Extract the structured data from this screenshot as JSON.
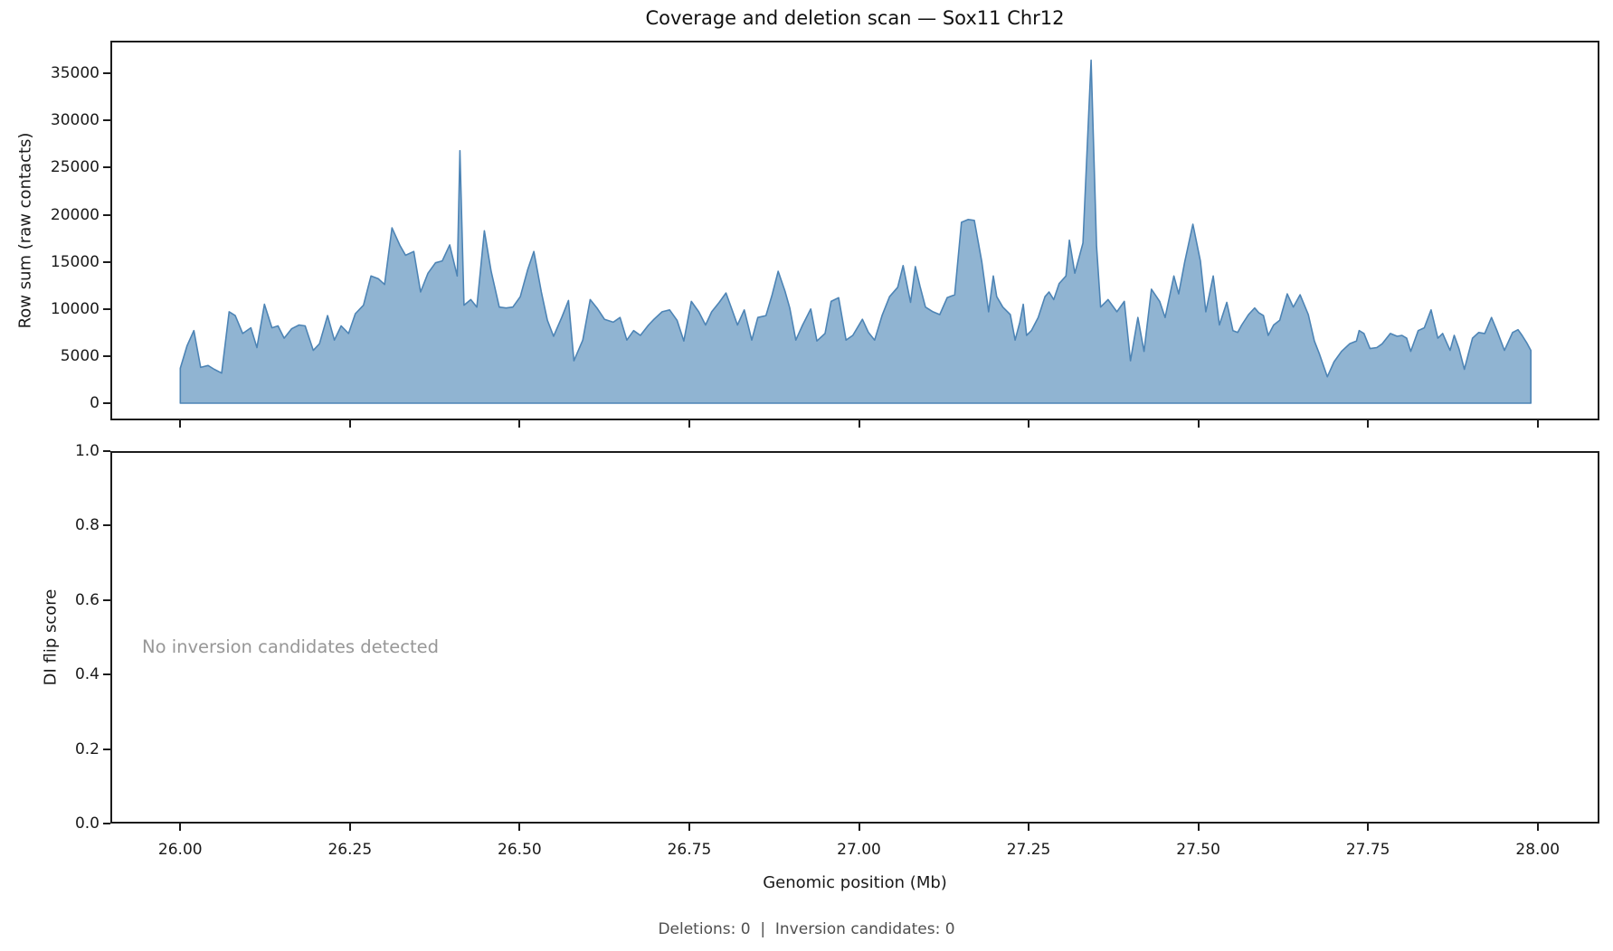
{
  "figure": {
    "title": "Coverage and deletion scan — Sox11 Chr12",
    "footer": "Deletions: 0  |  Inversion candidates: 0",
    "background": "#ffffff"
  },
  "chart_data": [
    {
      "type": "area",
      "title": "Coverage and deletion scan — Sox11 Chr12",
      "xlabel": "Genomic position (Mb)",
      "ylabel": "Row sum (raw contacts)",
      "xlim": [
        25.897,
        28.091
      ],
      "ylim": [
        -1822,
        38472
      ],
      "grid": false,
      "legend": "none",
      "fill_color": "rgba(70,130,180,0.6)",
      "line_color": "#4d84b5",
      "xticks": {
        "values": [
          26.0,
          26.25,
          26.5,
          26.75,
          27.0,
          27.25,
          27.5,
          27.75,
          28.0
        ],
        "labels": [
          "26.00",
          "26.25",
          "26.50",
          "26.75",
          "27.00",
          "27.25",
          "27.50",
          "27.75",
          "28.00"
        ]
      },
      "yticks": {
        "values": [
          0,
          5000,
          10000,
          15000,
          20000,
          25000,
          30000,
          35000
        ],
        "labels": [
          "0",
          "5000",
          "10000",
          "15000",
          "20000",
          "25000",
          "30000",
          "35000"
        ]
      },
      "points": [
        [
          26.0,
          3700
        ],
        [
          26.01,
          6100
        ],
        [
          26.02,
          7700
        ],
        [
          26.03,
          3800
        ],
        [
          26.041,
          4000
        ],
        [
          26.05,
          3600
        ],
        [
          26.061,
          3200
        ],
        [
          26.072,
          9700
        ],
        [
          26.081,
          9300
        ],
        [
          26.092,
          7400
        ],
        [
          26.104,
          8000
        ],
        [
          26.113,
          5900
        ],
        [
          26.124,
          10500
        ],
        [
          26.135,
          8000
        ],
        [
          26.144,
          8200
        ],
        [
          26.153,
          6900
        ],
        [
          26.164,
          7900
        ],
        [
          26.175,
          8300
        ],
        [
          26.184,
          8200
        ],
        [
          26.196,
          5600
        ],
        [
          26.205,
          6300
        ],
        [
          26.217,
          9300
        ],
        [
          26.227,
          6700
        ],
        [
          26.237,
          8200
        ],
        [
          26.248,
          7400
        ],
        [
          26.258,
          9500
        ],
        [
          26.27,
          10400
        ],
        [
          26.281,
          13500
        ],
        [
          26.292,
          13200
        ],
        [
          26.301,
          12600
        ],
        [
          26.312,
          18600
        ],
        [
          26.324,
          16700
        ],
        [
          26.332,
          15700
        ],
        [
          26.344,
          16100
        ],
        [
          26.354,
          11800
        ],
        [
          26.365,
          13800
        ],
        [
          26.376,
          14900
        ],
        [
          26.386,
          15100
        ],
        [
          26.397,
          16800
        ],
        [
          26.408,
          13500
        ],
        [
          26.412,
          26800
        ],
        [
          26.418,
          10400
        ],
        [
          26.428,
          11000
        ],
        [
          26.437,
          10200
        ],
        [
          26.448,
          18300
        ],
        [
          26.458,
          14000
        ],
        [
          26.47,
          10200
        ],
        [
          26.48,
          10100
        ],
        [
          26.49,
          10200
        ],
        [
          26.501,
          11300
        ],
        [
          26.512,
          14200
        ],
        [
          26.521,
          16100
        ],
        [
          26.532,
          11800
        ],
        [
          26.541,
          8800
        ],
        [
          26.55,
          7100
        ],
        [
          26.562,
          9100
        ],
        [
          26.572,
          10900
        ],
        [
          26.58,
          4500
        ],
        [
          26.593,
          6700
        ],
        [
          26.604,
          11000
        ],
        [
          26.614,
          10100
        ],
        [
          26.625,
          8900
        ],
        [
          26.638,
          8600
        ],
        [
          26.648,
          9100
        ],
        [
          26.658,
          6700
        ],
        [
          26.668,
          7700
        ],
        [
          26.678,
          7200
        ],
        [
          26.69,
          8300
        ],
        [
          26.698,
          8900
        ],
        [
          26.71,
          9700
        ],
        [
          26.721,
          9900
        ],
        [
          26.732,
          8800
        ],
        [
          26.742,
          6600
        ],
        [
          26.753,
          10800
        ],
        [
          26.764,
          9700
        ],
        [
          26.774,
          8300
        ],
        [
          26.783,
          9700
        ],
        [
          26.794,
          10700
        ],
        [
          26.804,
          11700
        ],
        [
          26.814,
          9700
        ],
        [
          26.821,
          8300
        ],
        [
          26.831,
          9900
        ],
        [
          26.842,
          6700
        ],
        [
          26.851,
          9100
        ],
        [
          26.863,
          9300
        ],
        [
          26.872,
          11500
        ],
        [
          26.881,
          14000
        ],
        [
          26.891,
          11900
        ],
        [
          26.898,
          10100
        ],
        [
          26.907,
          6700
        ],
        [
          26.917,
          8300
        ],
        [
          26.929,
          10000
        ],
        [
          26.938,
          6600
        ],
        [
          26.95,
          7400
        ],
        [
          26.959,
          10800
        ],
        [
          26.97,
          11200
        ],
        [
          26.981,
          6700
        ],
        [
          26.991,
          7200
        ],
        [
          27.005,
          8900
        ],
        [
          27.014,
          7500
        ],
        [
          27.023,
          6700
        ],
        [
          27.034,
          9300
        ],
        [
          27.045,
          11300
        ],
        [
          27.057,
          12300
        ],
        [
          27.065,
          14600
        ],
        [
          27.076,
          10700
        ],
        [
          27.083,
          14500
        ],
        [
          27.09,
          12400
        ],
        [
          27.098,
          10200
        ],
        [
          27.109,
          9700
        ],
        [
          27.119,
          9400
        ],
        [
          27.13,
          11200
        ],
        [
          27.141,
          11500
        ],
        [
          27.151,
          19200
        ],
        [
          27.161,
          19500
        ],
        [
          27.17,
          19400
        ],
        [
          27.181,
          15000
        ],
        [
          27.191,
          9700
        ],
        [
          27.198,
          13500
        ],
        [
          27.203,
          11300
        ],
        [
          27.212,
          10200
        ],
        [
          27.223,
          9400
        ],
        [
          27.23,
          6700
        ],
        [
          27.237,
          8600
        ],
        [
          27.242,
          10500
        ],
        [
          27.247,
          7200
        ],
        [
          27.254,
          7700
        ],
        [
          27.264,
          9100
        ],
        [
          27.274,
          11300
        ],
        [
          27.28,
          11800
        ],
        [
          27.287,
          11000
        ],
        [
          27.295,
          12700
        ],
        [
          27.305,
          13500
        ],
        [
          27.31,
          17300
        ],
        [
          27.318,
          13800
        ],
        [
          27.33,
          17000
        ],
        [
          27.342,
          36400
        ],
        [
          27.35,
          16700
        ],
        [
          27.356,
          10200
        ],
        [
          27.367,
          11000
        ],
        [
          27.38,
          9700
        ],
        [
          27.391,
          10800
        ],
        [
          27.4,
          4500
        ],
        [
          27.411,
          9100
        ],
        [
          27.42,
          5500
        ],
        [
          27.431,
          12100
        ],
        [
          27.443,
          10800
        ],
        [
          27.451,
          9100
        ],
        [
          27.464,
          13500
        ],
        [
          27.471,
          11600
        ],
        [
          27.48,
          15000
        ],
        [
          27.492,
          19000
        ],
        [
          27.503,
          15100
        ],
        [
          27.511,
          9700
        ],
        [
          27.522,
          13500
        ],
        [
          27.531,
          8300
        ],
        [
          27.542,
          10700
        ],
        [
          27.551,
          7700
        ],
        [
          27.558,
          7500
        ],
        [
          27.564,
          8300
        ],
        [
          27.574,
          9400
        ],
        [
          27.583,
          10100
        ],
        [
          27.589,
          9600
        ],
        [
          27.596,
          9300
        ],
        [
          27.603,
          7200
        ],
        [
          27.611,
          8300
        ],
        [
          27.62,
          8800
        ],
        [
          27.631,
          11600
        ],
        [
          27.64,
          10200
        ],
        [
          27.65,
          11500
        ],
        [
          27.662,
          9400
        ],
        [
          27.671,
          6600
        ],
        [
          27.678,
          5300
        ],
        [
          27.69,
          2800
        ],
        [
          27.7,
          4400
        ],
        [
          27.711,
          5500
        ],
        [
          27.723,
          6300
        ],
        [
          27.733,
          6600
        ],
        [
          27.737,
          7700
        ],
        [
          27.744,
          7400
        ],
        [
          27.753,
          5800
        ],
        [
          27.763,
          5900
        ],
        [
          27.771,
          6300
        ],
        [
          27.783,
          7400
        ],
        [
          27.793,
          7100
        ],
        [
          27.8,
          7200
        ],
        [
          27.807,
          6900
        ],
        [
          27.813,
          5500
        ],
        [
          27.824,
          7700
        ],
        [
          27.833,
          8000
        ],
        [
          27.843,
          9900
        ],
        [
          27.853,
          6900
        ],
        [
          27.86,
          7400
        ],
        [
          27.871,
          5600
        ],
        [
          27.877,
          7200
        ],
        [
          27.884,
          5800
        ],
        [
          27.892,
          3600
        ],
        [
          27.904,
          6900
        ],
        [
          27.913,
          7500
        ],
        [
          27.922,
          7400
        ],
        [
          27.932,
          9100
        ],
        [
          27.94,
          7700
        ],
        [
          27.951,
          5600
        ],
        [
          27.963,
          7500
        ],
        [
          27.971,
          7800
        ],
        [
          27.977,
          7200
        ],
        [
          27.984,
          6400
        ],
        [
          27.99,
          5600
        ]
      ]
    },
    {
      "type": "empty",
      "ylabel": "DI flip score",
      "annotation": "No inversion candidates detected",
      "xlim": [
        25.897,
        28.091
      ],
      "ylim": [
        0,
        1
      ],
      "series": [],
      "yticks": {
        "values": [
          0.0,
          0.2,
          0.4,
          0.6,
          0.8,
          1.0
        ],
        "labels": [
          "0.0",
          "0.2",
          "0.4",
          "0.6",
          "0.8",
          "1.0"
        ]
      }
    }
  ]
}
